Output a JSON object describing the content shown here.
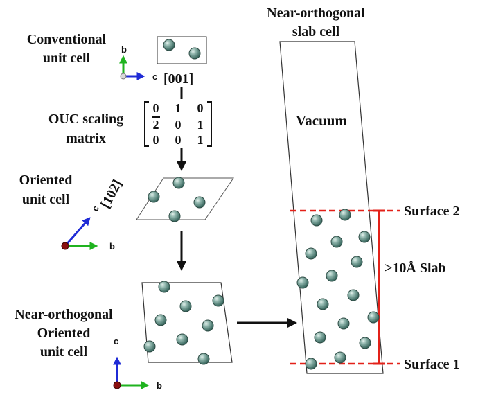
{
  "labels": {
    "conventional_1": "Conventional",
    "conventional_2": "unit cell",
    "direction_001": "[001]",
    "ouc_1": "OUC scaling",
    "ouc_2": "matrix",
    "oriented_1": "Oriented",
    "oriented_2": "unit cell",
    "direction_102": "[102]",
    "near_orth_1": "Near-orthogonal",
    "near_orth_2": "Oriented",
    "near_orth_3": "unit cell",
    "slab_title_1": "Near-orthogonal",
    "slab_title_2": "slab cell",
    "vacuum": "Vacuum",
    "surface_2": "Surface 2",
    "surface_1": "Surface 1",
    "slab_thickness": ">10Å Slab"
  },
  "matrix": {
    "rows": [
      [
        "0",
        "1",
        "0"
      ],
      [
        "2",
        "0",
        "1"
      ],
      [
        "0",
        "0",
        "1"
      ]
    ],
    "overbar_cell": [
      1,
      0
    ]
  },
  "axes": {
    "conventional": {
      "up": "b",
      "right": "c"
    },
    "oriented": {
      "up": "c",
      "right": "b"
    },
    "near_orthogonal": {
      "up": "c",
      "right": "b"
    }
  },
  "colors": {
    "atom_fill": "#6f9b92",
    "atom_stroke": "#2f4d46",
    "axis_green": "#1fb31f",
    "axis_blue": "#1f2bd6",
    "origin_red": "#8a1010",
    "surface_red": "#e32119",
    "arrow_black": "#111111",
    "cell_line": "#333333"
  }
}
